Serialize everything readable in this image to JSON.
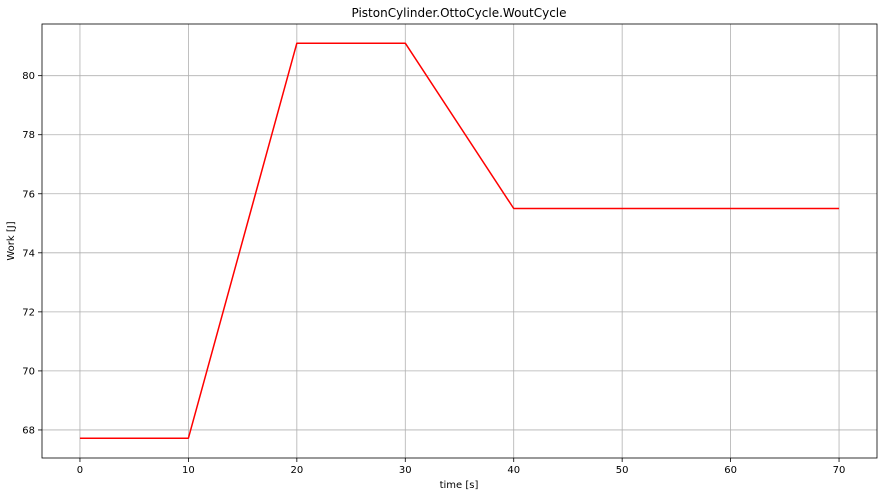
{
  "chart_data": {
    "type": "line",
    "title": "PistonCylinder.OttoCycle.WoutCycle",
    "xlabel": "time [s]",
    "ylabel": "Work [J]",
    "xlim": [
      -3.5,
      73.5
    ],
    "ylim": [
      67.05,
      81.75
    ],
    "xticks": [
      0,
      10,
      20,
      30,
      40,
      50,
      60,
      70
    ],
    "yticks": [
      68,
      70,
      72,
      74,
      76,
      78,
      80
    ],
    "grid": true,
    "series": [
      {
        "color": "#ff0000",
        "x": [
          0,
          10,
          20,
          30,
          40,
          70
        ],
        "y": [
          67.72,
          67.72,
          81.1,
          81.1,
          75.5,
          75.5
        ]
      }
    ]
  }
}
